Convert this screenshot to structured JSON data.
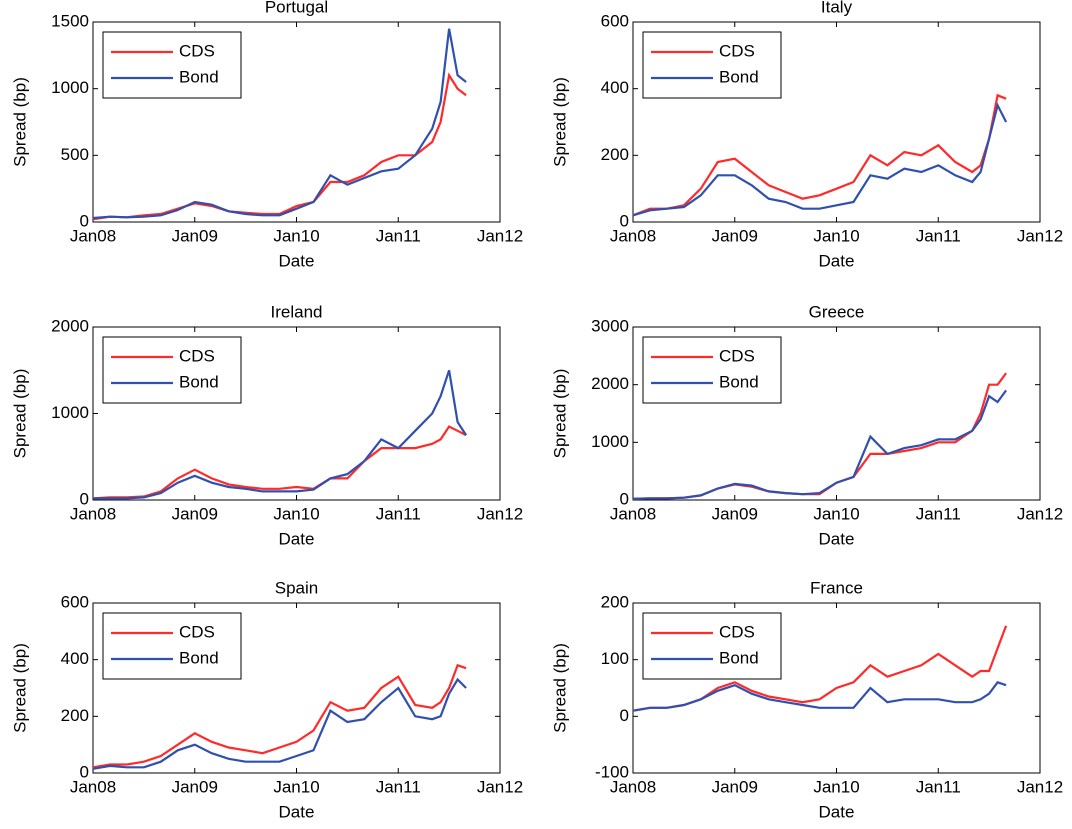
{
  "chart_data": [
    {
      "type": "line",
      "title": "Portugal",
      "xlabel": "Date",
      "ylabel": "Spread (bp)",
      "x": [
        "2008-01",
        "2008-03",
        "2008-05",
        "2008-07",
        "2008-09",
        "2008-11",
        "2009-01",
        "2009-03",
        "2009-05",
        "2009-07",
        "2009-09",
        "2009-11",
        "2010-01",
        "2010-03",
        "2010-05",
        "2010-07",
        "2010-09",
        "2010-11",
        "2011-01",
        "2011-03",
        "2011-05",
        "2011-06",
        "2011-07",
        "2011-08",
        "2011-09"
      ],
      "series": [
        {
          "name": "CDS",
          "color": "#ff2a2a",
          "values": [
            20,
            40,
            35,
            50,
            60,
            100,
            140,
            120,
            80,
            70,
            60,
            60,
            120,
            150,
            300,
            300,
            350,
            450,
            500,
            500,
            600,
            750,
            1100,
            1000,
            950
          ]
        },
        {
          "name": "Bond",
          "color": "#3050b0",
          "values": [
            30,
            40,
            35,
            40,
            50,
            90,
            150,
            130,
            80,
            60,
            50,
            50,
            100,
            150,
            350,
            280,
            330,
            380,
            400,
            500,
            700,
            900,
            1450,
            1100,
            1050
          ]
        }
      ],
      "xlim": [
        "2008-01",
        "2012-01"
      ],
      "xticks": [
        {
          "value": "2008-01",
          "label": "Jan08"
        },
        {
          "value": "2009-01",
          "label": "Jan09"
        },
        {
          "value": "2010-01",
          "label": "Jan10"
        },
        {
          "value": "2011-01",
          "label": "Jan11"
        },
        {
          "value": "2012-01",
          "label": "Jan12"
        }
      ],
      "ylim": [
        0,
        1500
      ],
      "yticks": [
        0,
        500,
        1000,
        1500
      ],
      "legend": "upper left"
    },
    {
      "type": "line",
      "title": "Italy",
      "xlabel": "Date",
      "ylabel": "Spread (bp)",
      "x": [
        "2008-01",
        "2008-03",
        "2008-05",
        "2008-07",
        "2008-09",
        "2008-11",
        "2009-01",
        "2009-03",
        "2009-05",
        "2009-07",
        "2009-09",
        "2009-11",
        "2010-01",
        "2010-03",
        "2010-05",
        "2010-07",
        "2010-09",
        "2010-11",
        "2011-01",
        "2011-03",
        "2011-05",
        "2011-06",
        "2011-07",
        "2011-08",
        "2011-09"
      ],
      "series": [
        {
          "name": "CDS",
          "color": "#ff2a2a",
          "values": [
            20,
            40,
            40,
            50,
            100,
            180,
            190,
            150,
            110,
            90,
            70,
            80,
            100,
            120,
            200,
            170,
            210,
            200,
            230,
            180,
            150,
            170,
            250,
            380,
            370
          ]
        },
        {
          "name": "Bond",
          "color": "#3050b0",
          "values": [
            20,
            35,
            40,
            45,
            80,
            140,
            140,
            110,
            70,
            60,
            40,
            40,
            50,
            60,
            140,
            130,
            160,
            150,
            170,
            140,
            120,
            150,
            250,
            350,
            300
          ]
        }
      ],
      "xlim": [
        "2008-01",
        "2012-01"
      ],
      "xticks": [
        {
          "value": "2008-01",
          "label": "Jan08"
        },
        {
          "value": "2009-01",
          "label": "Jan09"
        },
        {
          "value": "2010-01",
          "label": "Jan10"
        },
        {
          "value": "2011-01",
          "label": "Jan11"
        },
        {
          "value": "2012-01",
          "label": "Jan12"
        }
      ],
      "ylim": [
        0,
        600
      ],
      "yticks": [
        0,
        200,
        400,
        600
      ],
      "legend": "upper left"
    },
    {
      "type": "line",
      "title": "Ireland",
      "xlabel": "Date",
      "ylabel": "Spread (bp)",
      "x": [
        "2008-01",
        "2008-03",
        "2008-05",
        "2008-07",
        "2008-09",
        "2008-11",
        "2009-01",
        "2009-03",
        "2009-05",
        "2009-07",
        "2009-09",
        "2009-11",
        "2010-01",
        "2010-03",
        "2010-05",
        "2010-07",
        "2010-09",
        "2010-11",
        "2011-01",
        "2011-03",
        "2011-05",
        "2011-06",
        "2011-07",
        "2011-08",
        "2011-09"
      ],
      "series": [
        {
          "name": "CDS",
          "color": "#ff2a2a",
          "values": [
            20,
            30,
            30,
            40,
            100,
            250,
            350,
            250,
            180,
            150,
            130,
            130,
            150,
            130,
            250,
            250,
            450,
            600,
            600,
            600,
            650,
            700,
            850,
            800,
            750
          ]
        },
        {
          "name": "Bond",
          "color": "#3050b0",
          "values": [
            20,
            20,
            20,
            30,
            80,
            200,
            280,
            200,
            150,
            130,
            100,
            100,
            100,
            120,
            250,
            300,
            450,
            700,
            600,
            800,
            1000,
            1200,
            1500,
            900,
            750
          ]
        }
      ],
      "xlim": [
        "2008-01",
        "2012-01"
      ],
      "xticks": [
        {
          "value": "2008-01",
          "label": "Jan08"
        },
        {
          "value": "2009-01",
          "label": "Jan09"
        },
        {
          "value": "2010-01",
          "label": "Jan10"
        },
        {
          "value": "2011-01",
          "label": "Jan11"
        },
        {
          "value": "2012-01",
          "label": "Jan12"
        }
      ],
      "ylim": [
        0,
        2000
      ],
      "yticks": [
        0,
        1000,
        2000
      ],
      "legend": "upper left"
    },
    {
      "type": "line",
      "title": "Greece",
      "xlabel": "Date",
      "ylabel": "Spread (bp)",
      "x": [
        "2008-01",
        "2008-03",
        "2008-05",
        "2008-07",
        "2008-09",
        "2008-11",
        "2009-01",
        "2009-03",
        "2009-05",
        "2009-07",
        "2009-09",
        "2009-11",
        "2010-01",
        "2010-03",
        "2010-05",
        "2010-07",
        "2010-09",
        "2010-11",
        "2011-01",
        "2011-03",
        "2011-05",
        "2011-06",
        "2011-07",
        "2011-08",
        "2011-09"
      ],
      "series": [
        {
          "name": "CDS",
          "color": "#ff2a2a",
          "values": [
            20,
            30,
            30,
            40,
            80,
            200,
            270,
            230,
            150,
            120,
            100,
            100,
            300,
            400,
            800,
            800,
            850,
            900,
            1000,
            1000,
            1200,
            1500,
            2000,
            2000,
            2200
          ]
        },
        {
          "name": "Bond",
          "color": "#3050b0",
          "values": [
            20,
            30,
            30,
            40,
            80,
            200,
            280,
            250,
            150,
            120,
            100,
            120,
            300,
            400,
            1100,
            800,
            900,
            950,
            1050,
            1050,
            1200,
            1400,
            1800,
            1700,
            1900
          ]
        }
      ],
      "xlim": [
        "2008-01",
        "2012-01"
      ],
      "xticks": [
        {
          "value": "2008-01",
          "label": "Jan08"
        },
        {
          "value": "2009-01",
          "label": "Jan09"
        },
        {
          "value": "2010-01",
          "label": "Jan10"
        },
        {
          "value": "2011-01",
          "label": "Jan11"
        },
        {
          "value": "2012-01",
          "label": "Jan12"
        }
      ],
      "ylim": [
        0,
        3000
      ],
      "yticks": [
        0,
        1000,
        2000,
        3000
      ],
      "legend": "upper left"
    },
    {
      "type": "line",
      "title": "Spain",
      "xlabel": "Date",
      "ylabel": "Spread (bp)",
      "x": [
        "2008-01",
        "2008-03",
        "2008-05",
        "2008-07",
        "2008-09",
        "2008-11",
        "2009-01",
        "2009-03",
        "2009-05",
        "2009-07",
        "2009-09",
        "2009-11",
        "2010-01",
        "2010-03",
        "2010-05",
        "2010-07",
        "2010-09",
        "2010-11",
        "2011-01",
        "2011-03",
        "2011-05",
        "2011-06",
        "2011-07",
        "2011-08",
        "2011-09"
      ],
      "series": [
        {
          "name": "CDS",
          "color": "#ff2a2a",
          "values": [
            20,
            30,
            30,
            40,
            60,
            100,
            140,
            110,
            90,
            80,
            70,
            90,
            110,
            150,
            250,
            220,
            230,
            300,
            340,
            240,
            230,
            250,
            300,
            380,
            370
          ]
        },
        {
          "name": "Bond",
          "color": "#3050b0",
          "values": [
            15,
            25,
            20,
            20,
            40,
            80,
            100,
            70,
            50,
            40,
            40,
            40,
            60,
            80,
            220,
            180,
            190,
            250,
            300,
            200,
            190,
            200,
            280,
            330,
            300
          ]
        }
      ],
      "xlim": [
        "2008-01",
        "2012-01"
      ],
      "xticks": [
        {
          "value": "2008-01",
          "label": "Jan08"
        },
        {
          "value": "2009-01",
          "label": "Jan09"
        },
        {
          "value": "2010-01",
          "label": "Jan10"
        },
        {
          "value": "2011-01",
          "label": "Jan11"
        },
        {
          "value": "2012-01",
          "label": "Jan12"
        }
      ],
      "ylim": [
        0,
        600
      ],
      "yticks": [
        0,
        200,
        400,
        600
      ],
      "legend": "upper left"
    },
    {
      "type": "line",
      "title": "France",
      "xlabel": "Date",
      "ylabel": "Spread (bp)",
      "x": [
        "2008-01",
        "2008-03",
        "2008-05",
        "2008-07",
        "2008-09",
        "2008-11",
        "2009-01",
        "2009-03",
        "2009-05",
        "2009-07",
        "2009-09",
        "2009-11",
        "2010-01",
        "2010-03",
        "2010-05",
        "2010-07",
        "2010-09",
        "2010-11",
        "2011-01",
        "2011-03",
        "2011-05",
        "2011-06",
        "2011-07",
        "2011-08",
        "2011-09"
      ],
      "series": [
        {
          "name": "CDS",
          "color": "#ff2a2a",
          "values": [
            10,
            15,
            15,
            20,
            30,
            50,
            60,
            45,
            35,
            30,
            25,
            30,
            50,
            60,
            90,
            70,
            80,
            90,
            110,
            90,
            70,
            80,
            80,
            120,
            160
          ]
        },
        {
          "name": "Bond",
          "color": "#3050b0",
          "values": [
            10,
            15,
            15,
            20,
            30,
            45,
            55,
            40,
            30,
            25,
            20,
            15,
            15,
            15,
            50,
            25,
            30,
            30,
            30,
            25,
            25,
            30,
            40,
            60,
            55
          ]
        }
      ],
      "xlim": [
        "2008-01",
        "2012-01"
      ],
      "xticks": [
        {
          "value": "2008-01",
          "label": "Jan08"
        },
        {
          "value": "2009-01",
          "label": "Jan09"
        },
        {
          "value": "2010-01",
          "label": "Jan10"
        },
        {
          "value": "2011-01",
          "label": "Jan11"
        },
        {
          "value": "2012-01",
          "label": "Jan12"
        }
      ],
      "ylim": [
        -100,
        200
      ],
      "yticks": [
        -100,
        0,
        100,
        200
      ],
      "legend": "upper left"
    }
  ]
}
